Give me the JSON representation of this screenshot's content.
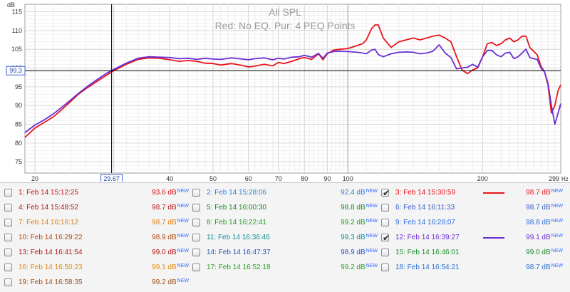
{
  "chart_data": {
    "type": "line",
    "title": "All SPL",
    "subtitle": "Red: No EQ. Pur: 4 PEQ Points",
    "ylabel": "dB",
    "xunit": "Hz",
    "xscale": "log",
    "xlim": [
      19,
      299
    ],
    "ylim": [
      72,
      117
    ],
    "y_ticks": [
      75,
      80,
      85,
      90,
      95,
      100,
      105,
      110,
      115
    ],
    "x_ticks": [
      20,
      30,
      40,
      50,
      60,
      70,
      80,
      90,
      100,
      200
    ],
    "x_tick_labels": [
      "20",
      "",
      "40",
      "50",
      "60",
      "70",
      "80",
      "90",
      "100",
      "200"
    ],
    "x_end_label": "299",
    "cursor": {
      "x_label": "29.67",
      "y_label": "99.3",
      "x": 29.67,
      "y": 99.3
    },
    "grid": true,
    "series": [
      {
        "color": "#e8141c",
        "x": [
          19,
          20,
          21,
          22,
          23,
          24,
          25,
          26,
          27,
          28,
          29,
          30,
          32,
          34,
          36,
          38,
          40,
          42,
          44,
          46,
          48,
          50,
          52,
          55,
          58,
          60,
          62,
          65,
          68,
          70,
          72,
          75,
          78,
          80,
          83,
          86,
          88,
          90,
          93,
          96,
          100,
          105,
          108,
          110,
          113,
          115,
          117,
          120,
          125,
          130,
          135,
          140,
          145,
          150,
          155,
          160,
          165,
          170,
          175,
          180,
          185,
          190,
          195,
          200,
          205,
          210,
          215,
          220,
          225,
          230,
          235,
          240,
          245,
          250,
          255,
          260,
          265,
          270,
          275,
          280,
          285,
          290,
          295,
          299
        ],
        "values": [
          81.5,
          84.0,
          85.5,
          87.0,
          89.0,
          91.0,
          93.0,
          94.5,
          95.8,
          97.0,
          98.2,
          99.3,
          101.0,
          102.3,
          102.7,
          102.6,
          102.2,
          101.8,
          102.0,
          101.8,
          101.3,
          101.2,
          100.8,
          101.2,
          100.7,
          100.3,
          100.5,
          101.0,
          100.6,
          101.5,
          101.2,
          101.8,
          102.5,
          102.8,
          102.3,
          103.8,
          102.2,
          103.8,
          104.8,
          105.0,
          105.2,
          106.0,
          106.5,
          107.5,
          110.5,
          111.5,
          111.5,
          108.0,
          105.5,
          107.0,
          107.5,
          108.0,
          107.5,
          108.0,
          108.5,
          108.8,
          108.0,
          107.0,
          103.0,
          99.5,
          98.5,
          99.5,
          100.0,
          103.0,
          106.5,
          106.8,
          106.0,
          106.5,
          107.5,
          108.0,
          107.0,
          107.5,
          108.5,
          108.5,
          105.5,
          104.5,
          103.5,
          100.5,
          99.0,
          95.5,
          88.0,
          90.0,
          94.0,
          95.5
        ]
      },
      {
        "color": "#6a2ed8",
        "x": [
          19,
          20,
          21,
          22,
          23,
          24,
          25,
          26,
          27,
          28,
          29,
          30,
          32,
          34,
          36,
          38,
          40,
          42,
          44,
          46,
          48,
          50,
          52,
          55,
          58,
          60,
          62,
          65,
          68,
          70,
          72,
          75,
          78,
          80,
          83,
          86,
          88,
          90,
          93,
          96,
          100,
          105,
          108,
          110,
          113,
          115,
          117,
          120,
          125,
          130,
          135,
          140,
          145,
          150,
          155,
          160,
          165,
          170,
          175,
          180,
          185,
          190,
          195,
          200,
          205,
          210,
          215,
          220,
          225,
          230,
          235,
          240,
          245,
          250,
          255,
          260,
          265,
          270,
          275,
          280,
          285,
          290,
          295,
          299
        ],
        "values": [
          82.8,
          84.8,
          86.2,
          87.8,
          89.6,
          91.4,
          93.2,
          94.8,
          96.2,
          97.5,
          98.7,
          99.6,
          101.3,
          102.6,
          103.0,
          102.9,
          102.8,
          102.5,
          102.6,
          102.3,
          102.6,
          102.4,
          102.3,
          102.7,
          102.4,
          102.2,
          102.5,
          102.7,
          102.2,
          102.6,
          102.4,
          102.9,
          103.0,
          103.4,
          102.9,
          103.9,
          102.6,
          104.0,
          104.4,
          104.5,
          104.4,
          104.2,
          104.0,
          103.8,
          104.8,
          105.0,
          103.6,
          103.0,
          103.8,
          104.2,
          104.3,
          104.2,
          103.8,
          104.0,
          104.5,
          106.2,
          104.0,
          102.8,
          99.8,
          100.0,
          100.2,
          101.0,
          100.2,
          103.0,
          104.7,
          104.7,
          103.5,
          103.0,
          104.0,
          104.2,
          102.5,
          103.0,
          104.0,
          105.0,
          102.8,
          102.5,
          102.3,
          100.0,
          99.0,
          96.0,
          90.0,
          85.0,
          88.0,
          90.5
        ]
      }
    ]
  },
  "legend": {
    "items": [
      {
        "name": "1: Feb 14 15:12:25",
        "value": "93.6 dB",
        "badge": "NEW",
        "checked": false,
        "color": "#d01010"
      },
      {
        "name": "2: Feb 14 15:28:06",
        "value": "92.4 dB",
        "badge": "NEW",
        "checked": false,
        "color": "#2f7fd8"
      },
      {
        "name": "3: Feb 14 15:30:59",
        "value": "98.7 dB",
        "badge": "NEW",
        "checked": true,
        "color": "#e8141c"
      },
      {
        "name": "4: Feb 14 15:48:52",
        "value": "98.7 dB",
        "badge": "NEW",
        "checked": false,
        "color": "#b81418"
      },
      {
        "name": "5: Feb 14 16:00:30",
        "value": "98.8 dB",
        "badge": "NEW",
        "checked": false,
        "color": "#17891e"
      },
      {
        "name": "6: Feb 14 16:11:33",
        "value": "98.7 dB",
        "badge": "NEW",
        "checked": false,
        "color": "#3a5fc8"
      },
      {
        "name": "7: Feb 14 16:16:12",
        "value": "98.7 dB",
        "badge": "NEW",
        "checked": false,
        "color": "#e07d10"
      },
      {
        "name": "8: Feb 14 16:22:41",
        "value": "99.2 dB",
        "badge": "NEW",
        "checked": false,
        "color": "#22a020"
      },
      {
        "name": "9: Feb 14 16:28:07",
        "value": "98.8 dB",
        "badge": "NEW",
        "checked": false,
        "color": "#2d6fd8"
      },
      {
        "name": "10: Feb 14 16:29:22",
        "value": "98.9 dB",
        "badge": "NEW",
        "checked": false,
        "color": "#b34a10"
      },
      {
        "name": "11: Feb 14 16:36:46",
        "value": "99.3 dB",
        "badge": "NEW",
        "checked": false,
        "color": "#138f94"
      },
      {
        "name": "12: Feb 14 16:39:27",
        "value": "99.1 dB",
        "badge": "NEW",
        "checked": true,
        "color": "#6a2ed8"
      },
      {
        "name": "13: Feb 14 16:41:54",
        "value": "99.0 dB",
        "badge": "NEW",
        "checked": false,
        "color": "#b01414"
      },
      {
        "name": "14: Feb 14 16:47:37",
        "value": "98.9 dB",
        "badge": "NEW",
        "checked": false,
        "color": "#2a4fb8"
      },
      {
        "name": "15: Feb 14 16:46:01",
        "value": "99.0 dB",
        "badge": "NEW",
        "checked": false,
        "color": "#1b8a2a"
      },
      {
        "name": "16: Feb 14 16:50:23",
        "value": "99.1 dB",
        "badge": "NEW",
        "checked": false,
        "color": "#e08a10"
      },
      {
        "name": "17: Feb 14 16:52:18",
        "value": "99.2 dB",
        "badge": "NEW",
        "checked": false,
        "color": "#2aa02a"
      },
      {
        "name": "18: Feb 14 16:54:21",
        "value": "98.7 dB",
        "badge": "NEW",
        "checked": false,
        "color": "#2a6fd0"
      },
      {
        "name": "19: Feb 14 16:58:35",
        "value": "99.2 dB",
        "badge": "NEW",
        "checked": false,
        "color": "#a0501a"
      }
    ]
  }
}
